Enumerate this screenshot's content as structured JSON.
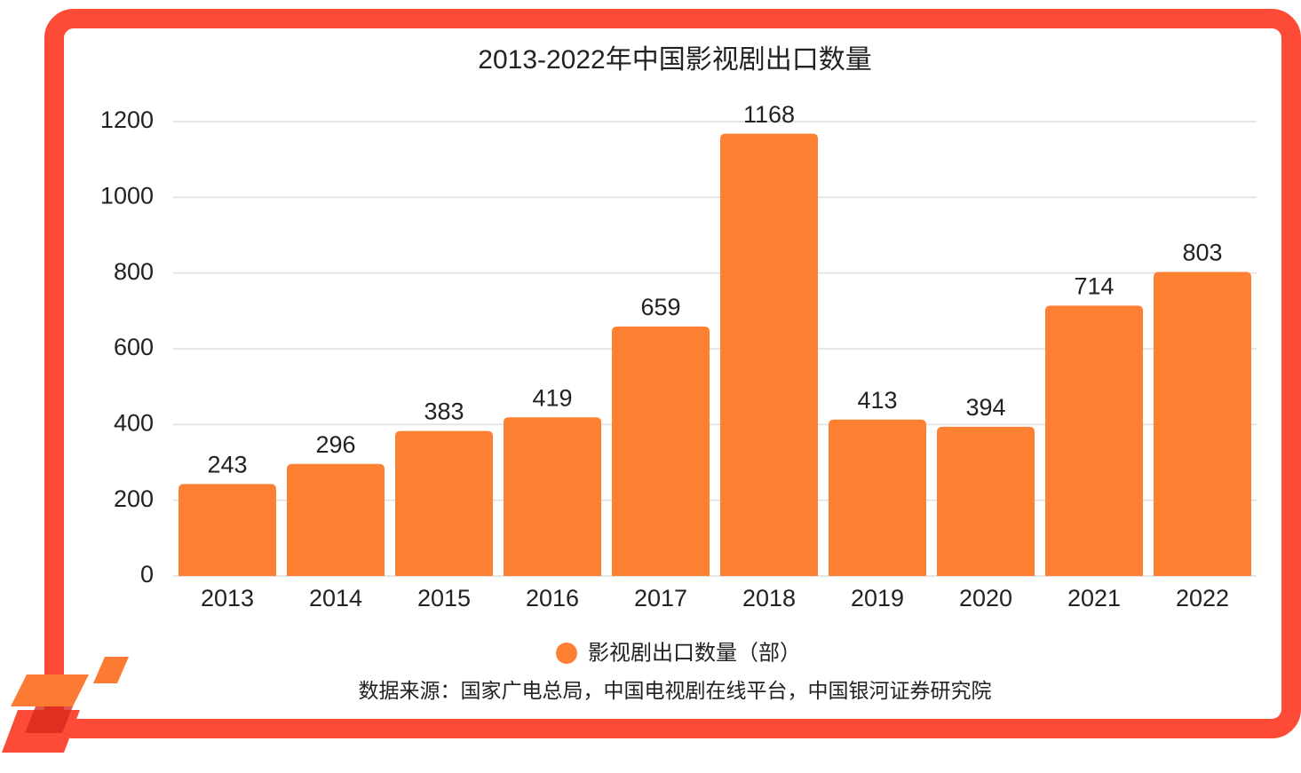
{
  "chart_data": {
    "type": "bar",
    "title": "2013-2022年中国影视剧出口数量",
    "categories": [
      "2013",
      "2014",
      "2015",
      "2016",
      "2017",
      "2018",
      "2019",
      "2020",
      "2021",
      "2022"
    ],
    "series": [
      {
        "name": "影视剧出口数量（部）",
        "color": "#fe8133",
        "values": [
          243,
          296,
          383,
          419,
          659,
          1168,
          413,
          394,
          714,
          803
        ]
      }
    ],
    "ylim": [
      0,
      1200
    ],
    "yticks": [
      0,
      200,
      400,
      600,
      800,
      1000,
      1200
    ],
    "grid": true,
    "source": "数据来源：国家广电总局，中国电视剧在线平台，中国银河证券研究院"
  }
}
